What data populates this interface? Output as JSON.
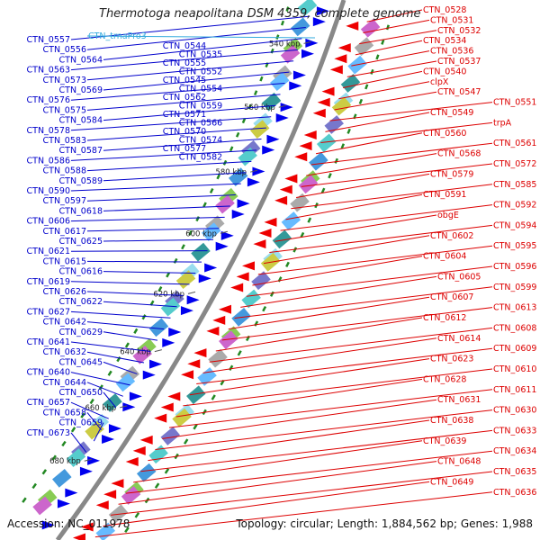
{
  "title": "Thermotoga neapolitana DSM 4359, complete genome",
  "footer": {
    "accession": "Accession: NC_011978",
    "topology": "Topology: circular; Length: 1,884,562 bp; Genes: 1,988"
  },
  "colors": {
    "forward_label": "#0000cc",
    "reverse_label": "#dd0000",
    "rna_label": "#33aadd",
    "forward_gene": "#0000ee",
    "reverse_gene": "#ee0000",
    "backbone": "#888888",
    "gc_dot": "#228822"
  },
  "scale_ticks": [
    "540 kbp",
    "560 kbp",
    "580 kbp",
    "600 kbp",
    "620 kbp",
    "640 kbp",
    "660 kbp",
    "680 kbp"
  ],
  "labels_left": [
    "CTN_0557",
    "CTN_0556",
    "CTN_0564",
    "CTN_0563",
    "CTN_0573",
    "CTN_0569",
    "CTN_0576",
    "CTN_0575",
    "CTN_0584",
    "CTN_0578",
    "CTN_0583",
    "CTN_0587",
    "CTN_0586",
    "CTN_0588",
    "CTN_0589",
    "CTN_0590",
    "CTN_0597",
    "CTN_0618",
    "CTN_0606",
    "CTN_0617",
    "CTN_0625",
    "CTN_0621",
    "CTN_0615",
    "CTN_0616",
    "CTN_0619",
    "CTN_0626",
    "CTN_0622",
    "CTN_0627",
    "CTN_0642",
    "CTN_0629",
    "CTN_0641",
    "CTN_0632",
    "CTN_0645",
    "CTN_0640",
    "CTN_0644",
    "CTN_0650",
    "CTN_0657",
    "CTN_0658",
    "CTN_0659",
    "CTN_0673",
    "CTN_0544",
    "CTN_0535",
    "CTN_0555",
    "CTN_0552",
    "CTN_0545",
    "CTN_0554",
    "CTN_0562",
    "CTN_0559",
    "CTN_0571",
    "CTN_0566",
    "CTN_0570",
    "CTN_0574",
    "CTN_0577",
    "CTN_0582"
  ],
  "labels_rna": [
    "CTN_trnaPro3"
  ],
  "labels_right": [
    "CTN_0528",
    "CTN_0531",
    "CTN_0532",
    "CTN_0534",
    "CTN_0536",
    "CTN_0537",
    "CTN_0540",
    "clpX",
    "CTN_0547",
    "CTN_0551",
    "CTN_0549",
    "trpA",
    "CTN_0560",
    "CTN_0561",
    "CTN_0568",
    "CTN_0572",
    "CTN_0579",
    "CTN_0585",
    "CTN_0591",
    "CTN_0592",
    "obgE",
    "CTN_0594",
    "CTN_0602",
    "CTN_0595",
    "CTN_0604",
    "CTN_0596",
    "CTN_0605",
    "CTN_0599",
    "CTN_0607",
    "CTN_0613",
    "CTN_0612",
    "CTN_0608",
    "CTN_0614",
    "CTN_0609",
    "CTN_0623",
    "CTN_0610",
    "CTN_0628",
    "CTN_0611",
    "CTN_0631",
    "CTN_0630",
    "CTN_0638",
    "CTN_0633",
    "CTN_0639",
    "CTN_0634",
    "CTN_0648",
    "CTN_0635",
    "CTN_0649",
    "CTN_0636"
  ]
}
